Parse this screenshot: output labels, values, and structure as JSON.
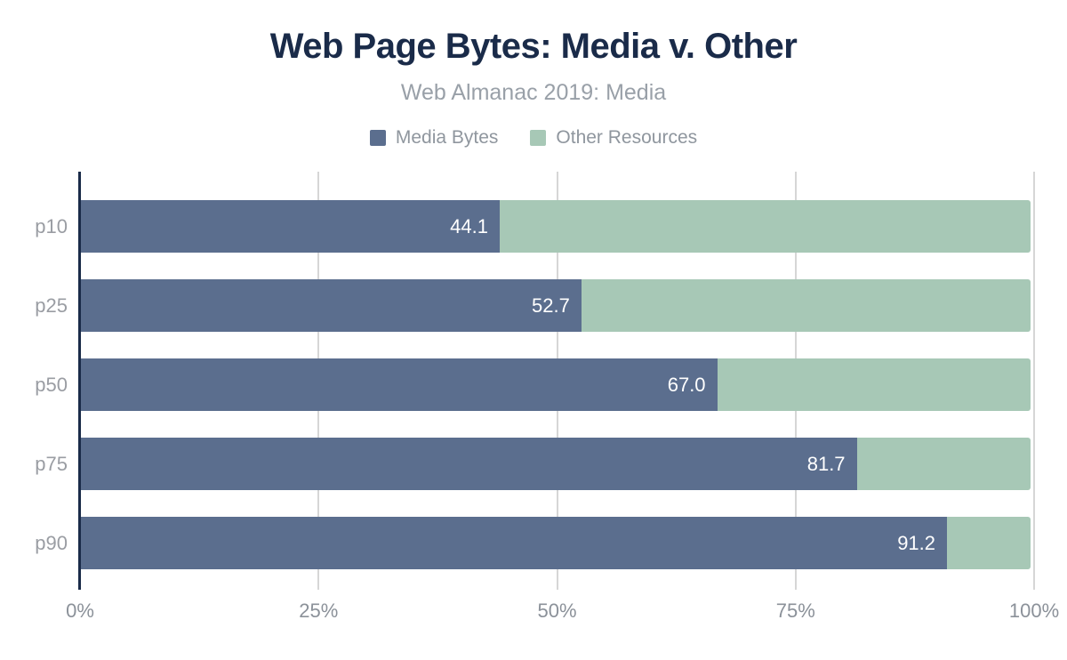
{
  "header": {
    "title": "Web Page Bytes: Media v. Other",
    "subtitle": "Web Almanac 2019: Media"
  },
  "legend": [
    {
      "label": "Media Bytes",
      "color": "#5b6e8e"
    },
    {
      "label": "Other Resources",
      "color": "#a7c8b6"
    }
  ],
  "chart_data": {
    "type": "bar",
    "orientation": "horizontal",
    "stacked": true,
    "title": "Web Page Bytes: Media v. Other",
    "subtitle": "Web Almanac 2019: Media",
    "categories": [
      "p10",
      "p25",
      "p50",
      "p75",
      "p90"
    ],
    "series": [
      {
        "name": "Media Bytes",
        "color": "#5b6e8e",
        "values": [
          44.1,
          52.7,
          67.0,
          81.7,
          91.2
        ],
        "value_labels": [
          "44.1",
          "52.7",
          "67.0",
          "81.7",
          "91.2"
        ]
      },
      {
        "name": "Other Resources",
        "color": "#a7c8b6",
        "values": [
          55.9,
          47.3,
          33.0,
          18.3,
          8.8
        ]
      }
    ],
    "xlabel": "",
    "ylabel": "",
    "xlim": [
      0,
      100
    ],
    "x_ticks": [
      {
        "label": "0%",
        "value": 0
      },
      {
        "label": "25%",
        "value": 25
      },
      {
        "label": "50%",
        "value": 50
      },
      {
        "label": "75%",
        "value": 75
      },
      {
        "label": "100%",
        "value": 100
      }
    ],
    "grid": true,
    "legend_position": "top",
    "colors": {
      "title": "#1a2b49",
      "subtitle": "#99a0a8",
      "legend_text": "#8f969e",
      "axis_line": "#1a2b49",
      "gridline": "#d6d6d6",
      "tick_label": "#8b9199",
      "category_label": "#9a9da3",
      "value_label": "#ffffff"
    }
  }
}
